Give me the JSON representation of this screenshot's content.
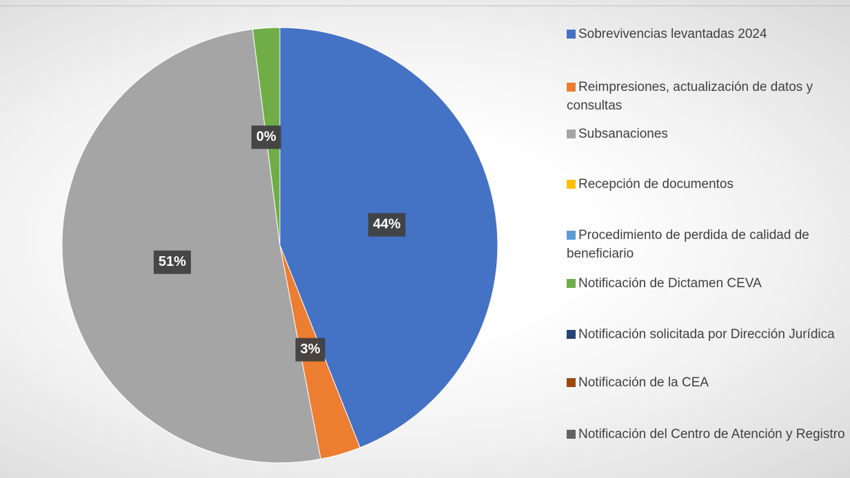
{
  "chart_data": {
    "type": "pie",
    "categories": [
      "Sobrevivencias levantadas 2024",
      "Reimpresiones, actualización de datos y consultas",
      "Subsanaciones",
      "Recepción de documentos",
      "Procedimiento de perdida de calidad de beneficiario",
      "Notificación de Dictamen CEVA",
      "Notificación solicitada por Dirección Jurídica",
      "Notificación de la CEA",
      "Notificación del Centro de Atención y Registro"
    ],
    "values": [
      44,
      3,
      51,
      0,
      0,
      2,
      0,
      0,
      0
    ],
    "value_labels": [
      "44%",
      "3%",
      "51%",
      "0%",
      null,
      null,
      null,
      null,
      null
    ],
    "colors": [
      "#4472c4",
      "#ed7d31",
      "#a5a5a5",
      "#ffc000",
      "#5b9bd5",
      "#70ad47",
      "#264478",
      "#9e480e",
      "#636363"
    ],
    "legend": "right"
  }
}
